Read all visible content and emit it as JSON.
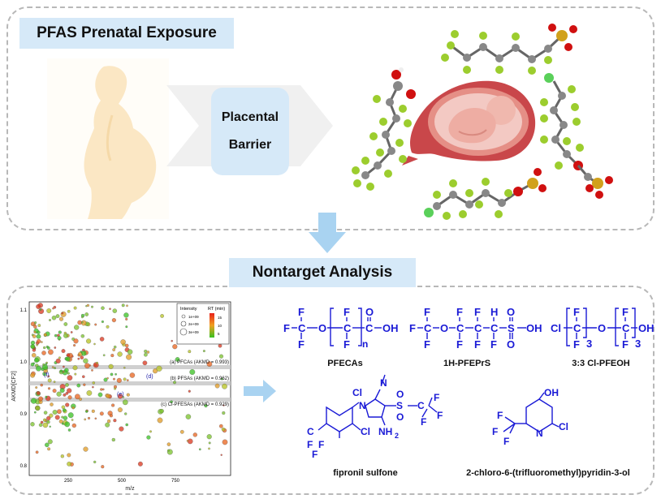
{
  "top_panel": {
    "title": "PFAS Prenatal Exposure",
    "barrier_label_line1": "Placental",
    "barrier_label_line2": "Barrier"
  },
  "bottom_panel": {
    "title": "Nontarget Analysis"
  },
  "plot": {
    "y_axis_label": "AKMD[CF2]",
    "x_axis_label": "m/z",
    "y_ticks": [
      "1.1",
      "1.0",
      "0.9",
      "0.8"
    ],
    "x_ticks": [
      "250",
      "500",
      "750"
    ],
    "legend_intensity_title": "Intensity",
    "legend_intensity_items": [
      "1e+09",
      "2e+09",
      "3e+09"
    ],
    "legend_rt_title": "RT (min)",
    "legend_rt_ticks": [
      "15",
      "10",
      "5"
    ],
    "series_lines": [
      "(a) PFCAs (AKMD = 0.993)",
      "(b) PFSAs (AKMD = 0.962)",
      "(c) Cl-PFESAs (AKMD = 0.929)"
    ],
    "point_tags": [
      "(d)",
      "(e)",
      "(f)"
    ]
  },
  "compounds": [
    {
      "name": "PFECAs"
    },
    {
      "name": "1H-PFEPrS"
    },
    {
      "name": "3:3 Cl-PFEOH"
    },
    {
      "name": "fipronil sulfone"
    },
    {
      "name": "2-chloro-6-(trifluoromethyl)pyridin-3-ol"
    }
  ],
  "colors": {
    "label_bg": "#d6e9f8",
    "arrow_blue": "#a9d3f1",
    "chem_blue": "#1a1ad6",
    "skin": "#fbe7c4",
    "fluorine_green": "#9ccd2e",
    "oxygen_red": "#d01010"
  }
}
